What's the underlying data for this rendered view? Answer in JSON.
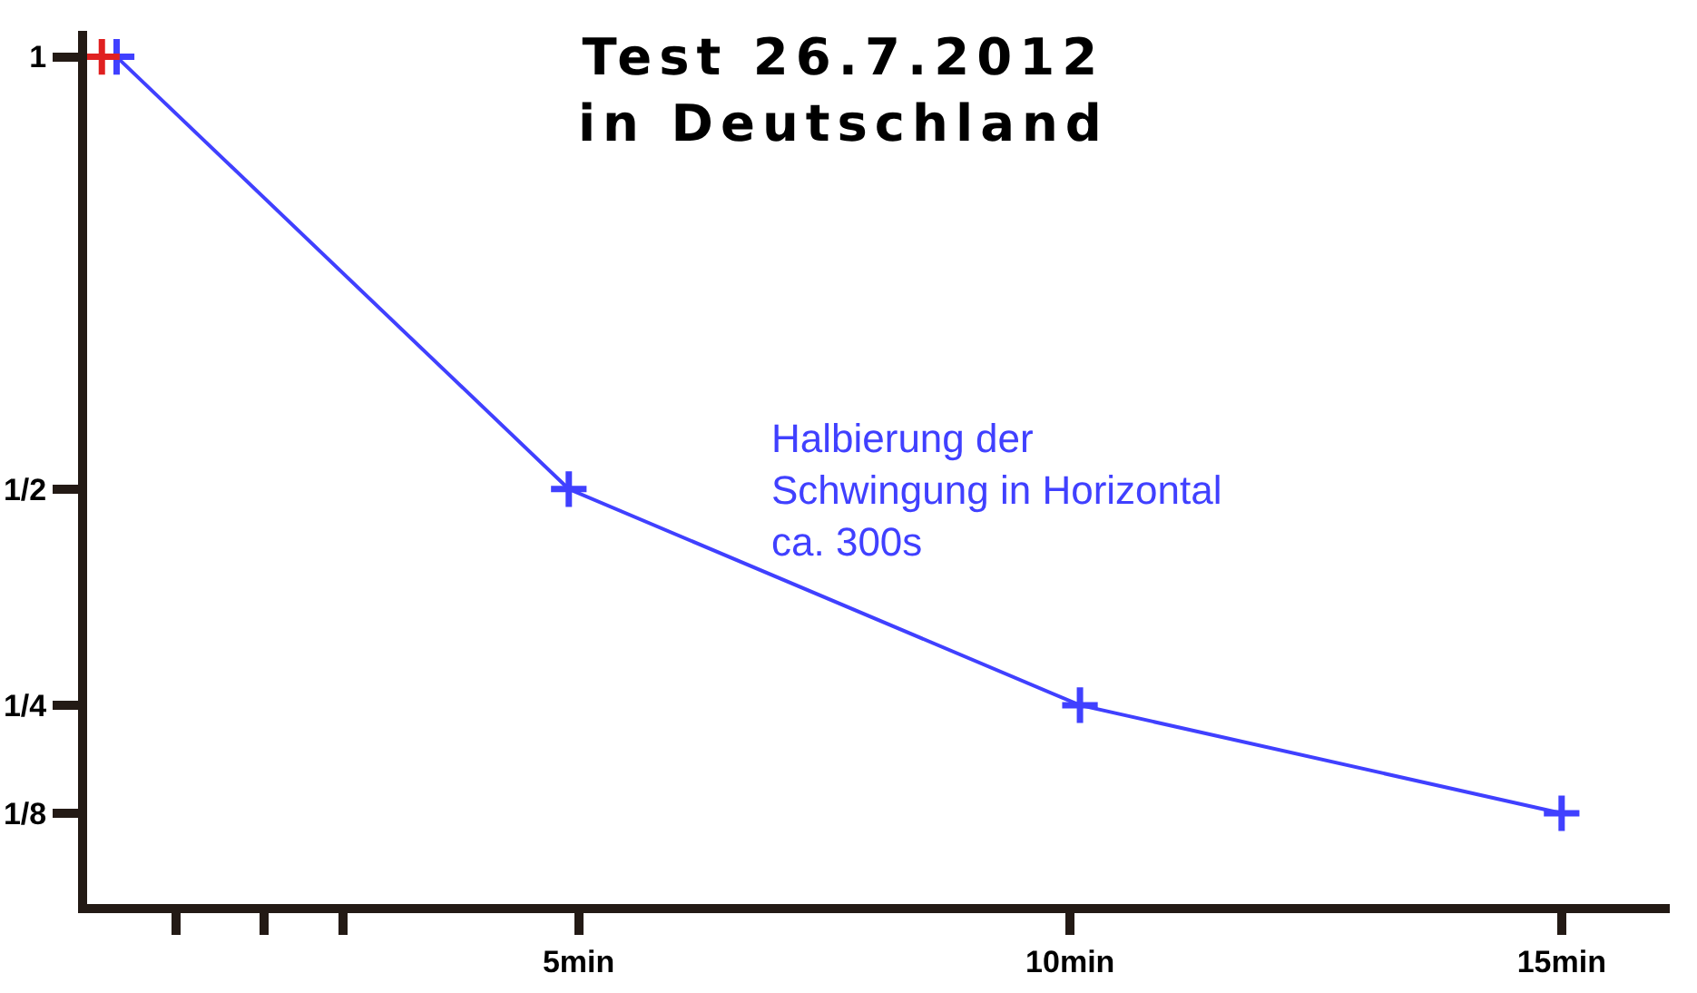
{
  "chart_data": {
    "type": "line",
    "title": "Test 26.7.2012\nin Deutschland",
    "annotations": [
      "Halbierung der\nSchwingung in Horizontal\nca. 300s"
    ],
    "xlim": [
      0,
      16.1
    ],
    "xticks": [
      {
        "value": 0.9,
        "label": null
      },
      {
        "value": 1.8,
        "label": null
      },
      {
        "value": 2.6,
        "label": null
      },
      {
        "value": 5,
        "label": "5min"
      },
      {
        "value": 10,
        "label": "10min"
      },
      {
        "value": 15,
        "label": "15min"
      }
    ],
    "ylim": [
      0.02,
      1.03
    ],
    "yticks": [
      1,
      {
        "value": 0.5,
        "label": "1/2"
      },
      {
        "value": 0.25,
        "label": "1/4"
      },
      {
        "value": 0.125,
        "label": "1/8"
      }
    ],
    "series": [
      {
        "color": "#4040ff",
        "x": [
          0.3,
          4.9,
          10.1,
          15
        ],
        "values": [
          1,
          0.5,
          0.25,
          0.125
        ]
      },
      {
        "type": "scatter",
        "color": "#e02020",
        "x": [
          0.15
        ],
        "values": [
          1
        ]
      }
    ],
    "marker": "cross",
    "line_style": "solid"
  }
}
